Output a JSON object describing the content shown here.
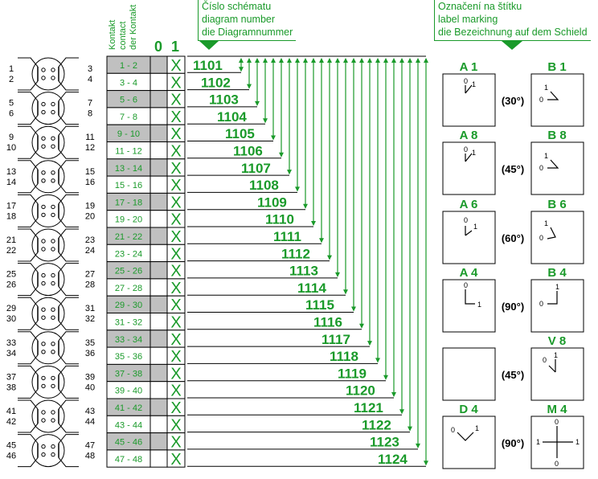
{
  "header": {
    "contact_labels": [
      "Kontakt",
      "contact",
      "der Kontakt"
    ],
    "position_labels": [
      "0",
      "1"
    ],
    "diagram_number_labels": [
      "Číslo schématu",
      "diagram number",
      "die Diagramnummer"
    ],
    "label_marking_labels": [
      "Označení na štítku",
      "label marking",
      "die Bezeichnung auf dem Schield"
    ]
  },
  "colors": {
    "green": "#1a9a2a",
    "gray": "#c0c0c0",
    "black": "#000000"
  },
  "rows": [
    {
      "contact": "1 - 2",
      "diagram": "1101"
    },
    {
      "contact": "3 - 4",
      "diagram": "1102"
    },
    {
      "contact": "5 - 6",
      "diagram": "1103"
    },
    {
      "contact": "7 - 8",
      "diagram": "1104"
    },
    {
      "contact": "9 - 10",
      "diagram": "1105"
    },
    {
      "contact": "11 - 12",
      "diagram": "1106"
    },
    {
      "contact": "13 - 14",
      "diagram": "1107"
    },
    {
      "contact": "15 - 16",
      "diagram": "1108"
    },
    {
      "contact": "17 - 18",
      "diagram": "1109"
    },
    {
      "contact": "19 - 20",
      "diagram": "1110"
    },
    {
      "contact": "21 - 22",
      "diagram": "1111"
    },
    {
      "contact": "23 - 24",
      "diagram": "1112"
    },
    {
      "contact": "25 - 26",
      "diagram": "1113"
    },
    {
      "contact": "27 - 28",
      "diagram": "1114"
    },
    {
      "contact": "29 - 30",
      "diagram": "1115"
    },
    {
      "contact": "31 - 32",
      "diagram": "1116"
    },
    {
      "contact": "33 - 34",
      "diagram": "1117"
    },
    {
      "contact": "35 - 36",
      "diagram": "1118"
    },
    {
      "contact": "37 - 38",
      "diagram": "1119"
    },
    {
      "contact": "39 - 40",
      "diagram": "1120"
    },
    {
      "contact": "41 - 42",
      "diagram": "1121"
    },
    {
      "contact": "43 - 44",
      "diagram": "1122"
    },
    {
      "contact": "45 - 46",
      "diagram": "1123"
    },
    {
      "contact": "47 - 48",
      "diagram": "1124"
    }
  ],
  "position_marker": "X",
  "switch_terminals": [
    [
      "1",
      "2",
      "3",
      "4"
    ],
    [
      "5",
      "6",
      "7",
      "8"
    ],
    [
      "9",
      "10",
      "11",
      "12"
    ],
    [
      "13",
      "14",
      "15",
      "16"
    ],
    [
      "17",
      "18",
      "19",
      "20"
    ],
    [
      "21",
      "22",
      "23",
      "24"
    ],
    [
      "25",
      "26",
      "27",
      "28"
    ],
    [
      "29",
      "30",
      "31",
      "32"
    ],
    [
      "33",
      "34",
      "35",
      "36"
    ],
    [
      "37",
      "38",
      "39",
      "40"
    ],
    [
      "41",
      "42",
      "43",
      "44"
    ],
    [
      "45",
      "46",
      "47",
      "48"
    ]
  ],
  "markings": [
    {
      "left": "A 1",
      "right": "B 1",
      "angle": "(30°)",
      "left_type": "A30",
      "right_type": "B30"
    },
    {
      "left": "A 8",
      "right": "B 8",
      "angle": "(45°)",
      "left_type": "A45",
      "right_type": "B45"
    },
    {
      "left": "A 6",
      "right": "B 6",
      "angle": "(60°)",
      "left_type": "A60",
      "right_type": "B60"
    },
    {
      "left": "A 4",
      "right": "B 4",
      "angle": "(90°)",
      "left_type": "A90",
      "right_type": "B90"
    },
    {
      "left": "",
      "right": "V 8",
      "angle": "(45°)",
      "left_type": "none",
      "right_type": "V45"
    },
    {
      "left": "D 4",
      "right": "M 4",
      "angle": "(90°)",
      "left_type": "D90",
      "right_type": "M90"
    }
  ],
  "dial_labels": {
    "zero": "0",
    "one": "1"
  }
}
